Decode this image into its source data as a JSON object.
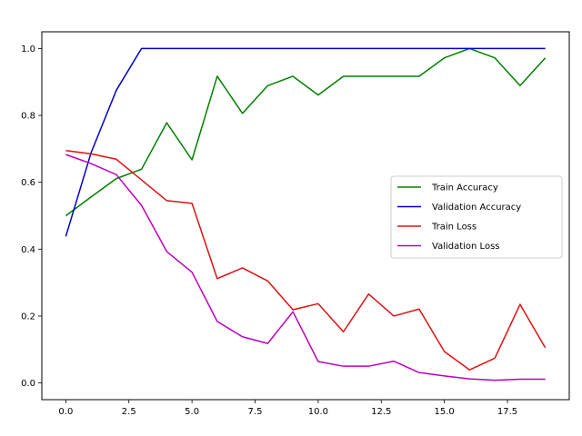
{
  "chart_data": {
    "type": "line",
    "title": "",
    "xlabel": "",
    "ylabel": "",
    "xlim": [
      -0.95,
      19.95
    ],
    "ylim": [
      -0.05,
      1.05
    ],
    "x": [
      0,
      1,
      2,
      3,
      4,
      5,
      6,
      7,
      8,
      9,
      10,
      11,
      12,
      13,
      14,
      15,
      16,
      17,
      18,
      19
    ],
    "x_ticks": [
      0.0,
      2.5,
      5.0,
      7.5,
      10.0,
      12.5,
      15.0,
      17.5
    ],
    "x_tick_labels": [
      "0.0",
      "2.5",
      "5.0",
      "7.5",
      "10.0",
      "12.5",
      "15.0",
      "17.5"
    ],
    "y_ticks": [
      0.0,
      0.2,
      0.4,
      0.6,
      0.8,
      1.0
    ],
    "y_tick_labels": [
      "0.0",
      "0.2",
      "0.4",
      "0.6",
      "0.8",
      "1.0"
    ],
    "grid": false,
    "legend_position": "center-right",
    "series": [
      {
        "name": "Train Accuracy",
        "color": "#008000",
        "values": [
          0.5,
          0.556,
          0.611,
          0.639,
          0.778,
          0.667,
          0.917,
          0.806,
          0.889,
          0.917,
          0.861,
          0.917,
          0.917,
          0.917,
          0.917,
          0.972,
          1.0,
          0.972,
          0.889,
          0.972
        ]
      },
      {
        "name": "Validation Accuracy",
        "color": "#0000cc",
        "values": [
          0.438,
          0.688,
          0.875,
          1.0,
          1.0,
          1.0,
          1.0,
          1.0,
          1.0,
          1.0,
          1.0,
          1.0,
          1.0,
          1.0,
          1.0,
          1.0,
          1.0,
          1.0,
          1.0,
          1.0
        ]
      },
      {
        "name": "Train Loss",
        "color": "#dd1111",
        "values": [
          0.695,
          0.685,
          0.669,
          0.607,
          0.545,
          0.537,
          0.312,
          0.344,
          0.305,
          0.219,
          0.237,
          0.153,
          0.266,
          0.2,
          0.221,
          0.094,
          0.039,
          0.074,
          0.235,
          0.105
        ]
      },
      {
        "name": "Validation Loss",
        "color": "#bb00bb",
        "values": [
          0.683,
          0.656,
          0.623,
          0.531,
          0.393,
          0.331,
          0.184,
          0.138,
          0.118,
          0.213,
          0.064,
          0.05,
          0.05,
          0.065,
          0.031,
          0.021,
          0.012,
          0.008,
          0.011,
          0.011
        ]
      }
    ]
  }
}
